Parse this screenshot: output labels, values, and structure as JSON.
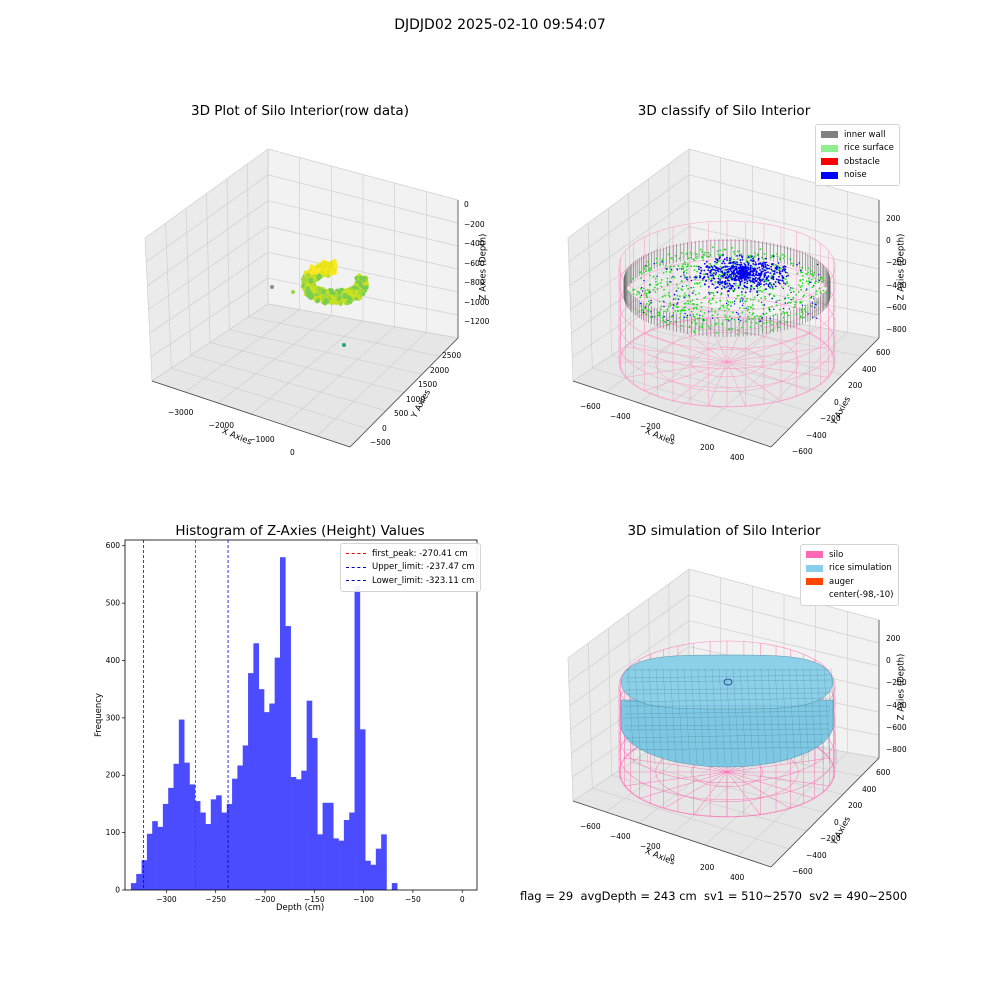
{
  "suptitle": "DJDJD02 2025-02-10 09:54:07",
  "footer": "flag = 29  avgDepth = 243 cm  sv1 = 510~2570  sv2 = 490~2500",
  "chart_data": [
    {
      "type": "scatter",
      "title": "3D Plot of Silo Interior(row data)",
      "xlabel": "X Axies",
      "ylabel": "Y Axies",
      "zlabel": "Z Axies (Depth)",
      "x_ticks": [
        "−3000",
        "−2000",
        "−1000",
        "0"
      ],
      "y_ticks": [
        "−500",
        "0",
        "500",
        "1000",
        "1500",
        "2000",
        "2500"
      ],
      "z_ticks": [
        "0",
        "−200",
        "−400",
        "−600",
        "−800",
        "−1000",
        "−1200"
      ],
      "colormap": "viridis"
    },
    {
      "type": "scatter",
      "title": "3D classify of Silo Interior",
      "xlabel": "X Axies",
      "ylabel": "Y Axies",
      "zlabel": "Z Axies (Depth)",
      "x_ticks": [
        "−600",
        "−400",
        "−200",
        "0",
        "200",
        "400"
      ],
      "y_ticks": [
        "−600",
        "−400",
        "−200",
        "0",
        "200",
        "400",
        "600"
      ],
      "z_ticks": [
        "200",
        "0",
        "−200",
        "−400",
        "−600",
        "−800"
      ],
      "legend": [
        {
          "label": "inner wall",
          "color": "#808080"
        },
        {
          "label": "rice surface",
          "color": "#90ee90"
        },
        {
          "label": "obstacle",
          "color": "#ff0000"
        },
        {
          "label": "noise",
          "color": "#0000ff"
        }
      ]
    },
    {
      "type": "bar",
      "title": "Histogram of Z-Axies (Height) Values",
      "xlabel": "Depth (cm)",
      "ylabel": "Frequency",
      "bar_color": "#4b4bff",
      "bin_start": -336,
      "bin_width": 5.4,
      "values": [
        12,
        28,
        52,
        98,
        120,
        110,
        150,
        178,
        220,
        297,
        222,
        184,
        155,
        135,
        115,
        158,
        165,
        135,
        150,
        194,
        217,
        252,
        378,
        430,
        350,
        310,
        325,
        405,
        580,
        460,
        197,
        193,
        208,
        330,
        265,
        97,
        152,
        152,
        90,
        86,
        122,
        135,
        530,
        280,
        51,
        44,
        72,
        97,
        0,
        12
      ],
      "xlim": [
        -342,
        15
      ],
      "ylim": [
        0,
        610
      ],
      "xticks": [
        -300,
        -250,
        -200,
        -150,
        -100,
        -50,
        0
      ],
      "yticks": [
        0,
        100,
        200,
        300,
        400,
        500,
        600
      ],
      "lines": [
        {
          "label": "first_peak: -270.41 cm",
          "x": -270.41,
          "color": "#ff0000"
        },
        {
          "label": "Upper_limit: -237.47 cm",
          "x": -237.47,
          "color": "#0000cc"
        },
        {
          "label": "Lower_limit: -323.11 cm",
          "x": -323.11,
          "color": "#0000cc"
        }
      ]
    },
    {
      "type": "surface",
      "title": "3D simulation of Silo Interior",
      "xlabel": "X Axies",
      "ylabel": "Y Axies",
      "zlabel": "Z Axies (Depth)",
      "x_ticks": [
        "−600",
        "−400",
        "−200",
        "0",
        "200",
        "400"
      ],
      "y_ticks": [
        "−600",
        "−400",
        "−200",
        "0",
        "200",
        "400",
        "600"
      ],
      "z_ticks": [
        "200",
        "0",
        "−200",
        "−400",
        "−600",
        "−800"
      ],
      "legend": [
        {
          "label": "silo",
          "color": "#ff69b4"
        },
        {
          "label": "rice simulation",
          "color": "#87ceeb"
        },
        {
          "label": "auger",
          "color": "#ff4500"
        },
        {
          "label": "center(-98,-10)",
          "color": ""
        }
      ]
    }
  ]
}
